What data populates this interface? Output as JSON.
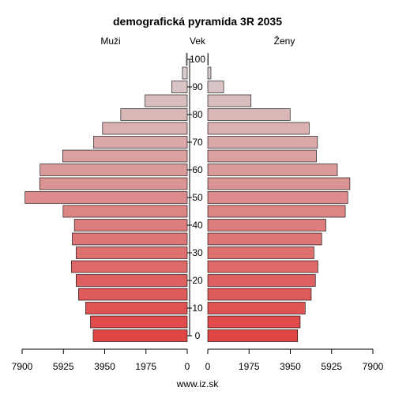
{
  "chart_data": {
    "type": "bar",
    "title": "demografická pyramída 3R 2035",
    "left_label": "Muži",
    "center_label": "Vek",
    "right_label": "Ženy",
    "footer": "www.iz.sk",
    "age_groups": [
      "0",
      "5",
      "10",
      "15",
      "20",
      "25",
      "30",
      "35",
      "40",
      "45",
      "50",
      "55",
      "60",
      "65",
      "70",
      "75",
      "80",
      "85",
      "90",
      "95",
      "100"
    ],
    "y_ticks": [
      "0",
      "10",
      "20",
      "30",
      "40",
      "50",
      "60",
      "70",
      "80",
      "90",
      "100"
    ],
    "x_ticks_left": [
      "7900",
      "5925",
      "3950",
      "1975",
      "0"
    ],
    "x_ticks_right": [
      "0",
      "1975",
      "3950",
      "5925",
      "7900"
    ],
    "xlim": [
      0,
      7900
    ],
    "series": [
      {
        "name": "Muži",
        "values": [
          4500,
          4630,
          4860,
          5200,
          5320,
          5540,
          5320,
          5500,
          5400,
          5940,
          7760,
          7060,
          7040,
          5960,
          4480,
          4050,
          3180,
          2020,
          740,
          230,
          40
        ]
      },
      {
        "name": "Ženy",
        "values": [
          4300,
          4420,
          4660,
          4950,
          5150,
          5270,
          5080,
          5450,
          5650,
          6580,
          6700,
          6800,
          6200,
          5200,
          5250,
          4850,
          3940,
          2070,
          760,
          150,
          20
        ]
      }
    ],
    "colors": {
      "top": "#d8d3d3",
      "bottom": "#e04545",
      "axis": "#000000",
      "bar_stroke": "#000000"
    }
  }
}
